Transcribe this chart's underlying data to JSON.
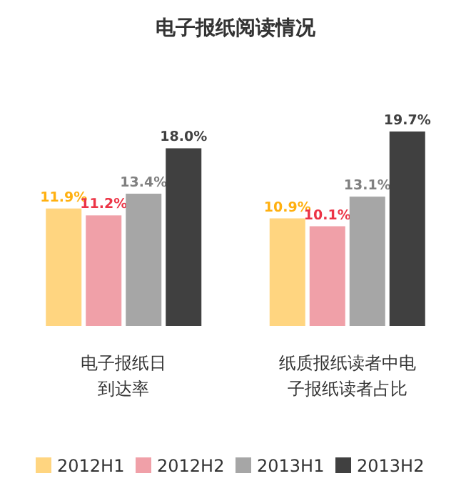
{
  "chart_data": {
    "type": "bar",
    "title": "电子报纸阅读情况",
    "categories": [
      "电子报纸日到达率",
      "纸质报纸读者中电子报纸读者占比"
    ],
    "series": [
      {
        "name": "2012H1",
        "color": "#ffd580",
        "values": [
          11.9,
          10.9
        ],
        "value_labels": [
          "11.9%",
          "10.9%"
        ]
      },
      {
        "name": "2012H2",
        "color": "#f0a0a8",
        "values": [
          11.2,
          10.1
        ],
        "value_labels": [
          "11.2%",
          "10.1%"
        ]
      },
      {
        "name": "2013H1",
        "color": "#a6a6a6",
        "values": [
          13.4,
          13.1
        ],
        "value_labels": [
          "13.4%",
          "13.1%"
        ]
      },
      {
        "name": "2013H2",
        "color": "#404040",
        "values": [
          18.0,
          19.7
        ],
        "value_labels": [
          "18.0%",
          "19.7%"
        ]
      }
    ],
    "legend": "bottom"
  }
}
